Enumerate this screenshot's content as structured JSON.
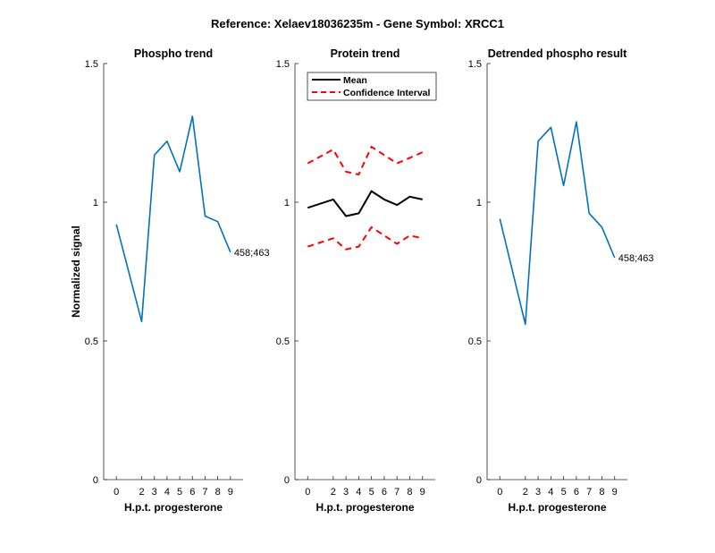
{
  "figure": {
    "title": "Reference:  Xelaev18036235m - Gene Symbol:  XRCC1"
  },
  "colors": {
    "phospho_line": "#0072BD",
    "mean_line": "#000000",
    "ci_line": "#FF0000",
    "axis": "#262626"
  },
  "chart_data": [
    {
      "type": "line",
      "title": "Phospho trend",
      "xlabel": "H.p.t. progesterone",
      "ylabel": "Normalized signal",
      "xlim": [
        -1,
        10
      ],
      "ylim": [
        0,
        1.5
      ],
      "x_ticks": [
        "0",
        "2",
        "3",
        "4",
        "5",
        "6",
        "7",
        "8",
        "9"
      ],
      "y_ticks": [
        "0",
        "0.5",
        "1",
        "1.5"
      ],
      "series": [
        {
          "values": [
            0.92,
            0.57,
            1.17,
            1.22,
            1.11,
            1.31,
            0.95,
            0.93,
            0.82
          ],
          "end_label": "458;463"
        }
      ]
    },
    {
      "type": "line",
      "title": "Protein trend",
      "xlabel": "H.p.t. progesterone",
      "ylabel": "",
      "xlim": [
        -1,
        10
      ],
      "ylim": [
        0,
        1.5
      ],
      "x_ticks": [
        "0",
        "2",
        "3",
        "4",
        "5",
        "6",
        "7",
        "8",
        "9"
      ],
      "y_ticks": [
        "0",
        "0.5",
        "1",
        "1.5"
      ],
      "legend_position": "top-left",
      "series": [
        {
          "name": "Mean",
          "values": [
            0.98,
            1.01,
            0.95,
            0.96,
            1.04,
            1.01,
            0.99,
            1.02,
            1.01
          ]
        },
        {
          "name": "Confidence Interval",
          "values": [
            1.14,
            1.19,
            1.11,
            1.1,
            1.2,
            1.17,
            1.14,
            1.16,
            1.18
          ]
        },
        {
          "name": "",
          "values": [
            0.84,
            0.87,
            0.83,
            0.84,
            0.91,
            0.88,
            0.85,
            0.88,
            0.87
          ]
        }
      ]
    },
    {
      "type": "line",
      "title": "Detrended phospho result",
      "xlabel": "H.p.t. progesterone",
      "ylabel": "",
      "xlim": [
        -1,
        10
      ],
      "ylim": [
        0,
        1.5
      ],
      "x_ticks": [
        "0",
        "2",
        "3",
        "4",
        "5",
        "6",
        "7",
        "8",
        "9"
      ],
      "y_ticks": [
        "0",
        "0.5",
        "1",
        "1.5"
      ],
      "series": [
        {
          "values": [
            0.94,
            0.56,
            1.22,
            1.27,
            1.06,
            1.29,
            0.96,
            0.91,
            0.8
          ],
          "end_label": "458;463"
        }
      ]
    }
  ]
}
